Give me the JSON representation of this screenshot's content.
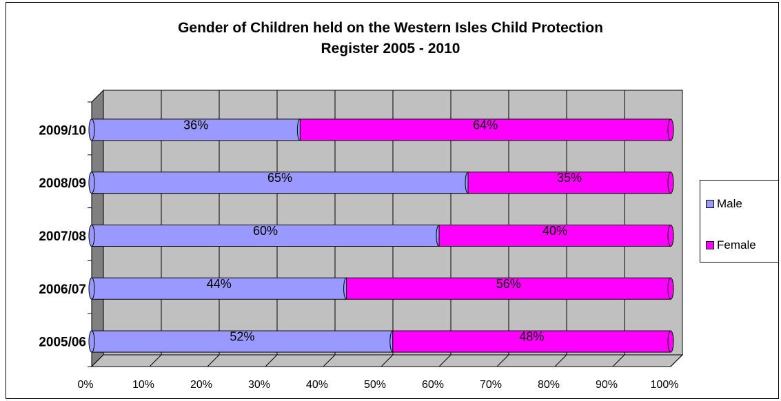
{
  "chart_data": {
    "type": "bar",
    "orientation": "horizontal",
    "stacked": "percent",
    "title_lines": [
      "Gender of Children held on the Western Isles Child Protection",
      "Register 2005 - 2010"
    ],
    "categories": [
      "2005/06",
      "2006/07",
      "2007/08",
      "2008/09",
      "2009/10"
    ],
    "series": [
      {
        "name": "Male",
        "values": [
          52,
          44,
          60,
          65,
          36
        ],
        "labels": [
          "52%",
          "44%",
          "60%",
          "65%",
          "36%"
        ],
        "color": "#9999FF"
      },
      {
        "name": "Female",
        "values": [
          48,
          56,
          40,
          35,
          64
        ],
        "labels": [
          "48%",
          "56%",
          "40%",
          "35%",
          "64%"
        ],
        "color": "#FF00FF"
      }
    ],
    "xticks": [
      "0%",
      "10%",
      "20%",
      "30%",
      "40%",
      "50%",
      "60%",
      "70%",
      "80%",
      "90%",
      "100%"
    ],
    "xlim": [
      0,
      100
    ],
    "grid": true,
    "legend_position": "right",
    "wall_color": "#C0C0C0"
  }
}
